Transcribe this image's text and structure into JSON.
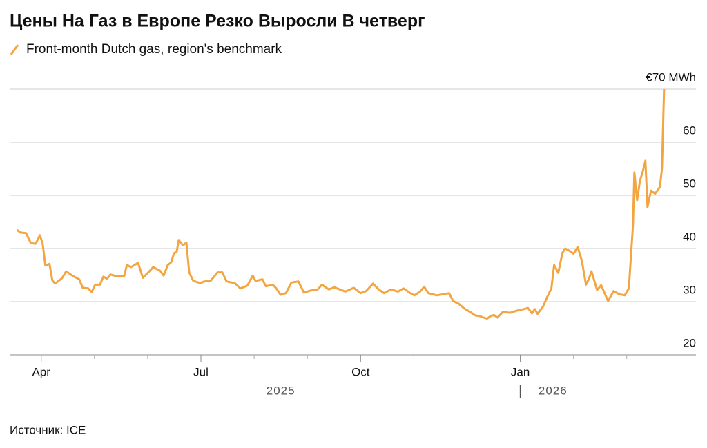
{
  "chart_data": {
    "type": "line",
    "title": "Цены На Газ в Европе Резко Выросли В четверг",
    "source": "Источник: ICE",
    "series": [
      {
        "name": "Front-month Dutch gas, region's benchmark",
        "color": "#f2a541",
        "x": [
          3.545,
          3.61,
          3.714,
          3.805,
          3.896,
          3.974,
          4.026,
          4.078,
          4.156,
          4.208,
          4.26,
          4.39,
          4.468,
          4.584,
          4.714,
          4.779,
          4.883,
          4.948,
          5.013,
          5.104,
          5.169,
          5.234,
          5.299,
          5.403,
          5.558,
          5.61,
          5.688,
          5.818,
          5.909,
          6.013,
          6.104,
          6.234,
          6.299,
          6.377,
          6.442,
          6.494,
          6.545,
          6.584,
          6.662,
          6.727,
          6.779,
          6.857,
          6.987,
          7.065,
          7.182,
          7.312,
          7.403,
          7.481,
          7.636,
          7.74,
          7.87,
          7.974,
          8.026,
          8.156,
          8.221,
          8.351,
          8.416,
          8.494,
          8.597,
          8.701,
          8.831,
          8.935,
          9.065,
          9.195,
          9.273,
          9.403,
          9.506,
          9.61,
          9.714,
          9.87,
          10.0,
          10.104,
          10.234,
          10.338,
          10.442,
          10.571,
          10.701,
          10.805,
          10.935,
          11.013,
          11.117,
          11.195,
          11.273,
          11.429,
          11.558,
          11.662,
          11.74,
          11.844,
          11.948,
          12.052,
          12.156,
          12.234,
          12.312,
          12.377,
          12.442,
          12.506,
          12.571,
          12.675,
          12.805,
          12.935,
          13.065,
          13.143,
          13.221,
          13.273,
          13.325,
          13.429,
          13.506,
          13.584,
          13.636,
          13.714,
          13.792,
          13.844,
          13.948,
          14.0,
          14.078,
          14.156,
          14.234,
          14.286,
          14.338,
          14.442,
          14.519,
          14.649,
          14.753,
          14.857,
          14.961,
          15.039,
          15.117,
          15.143,
          15.195,
          15.247,
          15.299,
          15.351,
          15.39,
          15.455,
          15.532,
          15.623,
          15.662,
          15.701
        ],
        "values": [
          43.5,
          43,
          42.9,
          41,
          40.9,
          42.5,
          41,
          36.8,
          37.1,
          34,
          33.4,
          34.4,
          35.7,
          34.9,
          34.2,
          32.6,
          32.5,
          31.8,
          33.2,
          33.2,
          34.7,
          34.3,
          35.1,
          34.8,
          34.8,
          36.9,
          36.5,
          37.3,
          34.5,
          35.5,
          36.5,
          35.8,
          34.9,
          36.9,
          37.4,
          39.1,
          39.4,
          41.6,
          40.6,
          41.1,
          35.5,
          33.9,
          33.5,
          33.8,
          33.9,
          35.5,
          35.5,
          33.8,
          33.5,
          32.5,
          33,
          34.9,
          33.9,
          34.2,
          32.9,
          33.2,
          32.5,
          31.3,
          31.6,
          33.6,
          33.8,
          31.7,
          32.1,
          32.3,
          33.2,
          32.3,
          32.7,
          32.3,
          31.9,
          32.6,
          31.6,
          32,
          33.4,
          32.3,
          31.6,
          32.3,
          31.9,
          32.5,
          31.6,
          31.2,
          31.9,
          32.8,
          31.6,
          31.2,
          31.4,
          31.6,
          30.1,
          29.6,
          28.7,
          28.1,
          27.4,
          27.3,
          27,
          26.8,
          27.3,
          27.5,
          27,
          28.1,
          27.9,
          28.3,
          28.6,
          28.8,
          27.8,
          28.6,
          27.7,
          29.1,
          30.9,
          32.5,
          36.9,
          35.4,
          39.2,
          40,
          39.4,
          39,
          40.3,
          37.7,
          33.2,
          34.2,
          35.7,
          32.2,
          33.1,
          30.1,
          32,
          31.4,
          31.2,
          32.5,
          44.4,
          54.3,
          49.1,
          52.7,
          54.4,
          56.5,
          47.8,
          50.9,
          50.3,
          51.6,
          55.1,
          70
        ]
      }
    ],
    "xlim": [
      3.42,
      16.3
    ],
    "xticks": [
      {
        "value": 4,
        "label": "Apr"
      },
      {
        "value": 7,
        "label": "Jul"
      },
      {
        "value": 10,
        "label": "Oct"
      },
      {
        "value": 13,
        "label": "Jan"
      }
    ],
    "xminor_ticks": [
      5,
      6,
      8,
      9,
      11,
      12,
      14,
      15
    ],
    "years": [
      "2025",
      "2026"
    ],
    "ylim": [
      20,
      70
    ],
    "yticks": [
      20,
      30,
      40,
      50,
      {
        "value": 60,
        "label": "60"
      },
      {
        "value": 70,
        "label": "€70 MWh"
      }
    ],
    "grid": true
  }
}
